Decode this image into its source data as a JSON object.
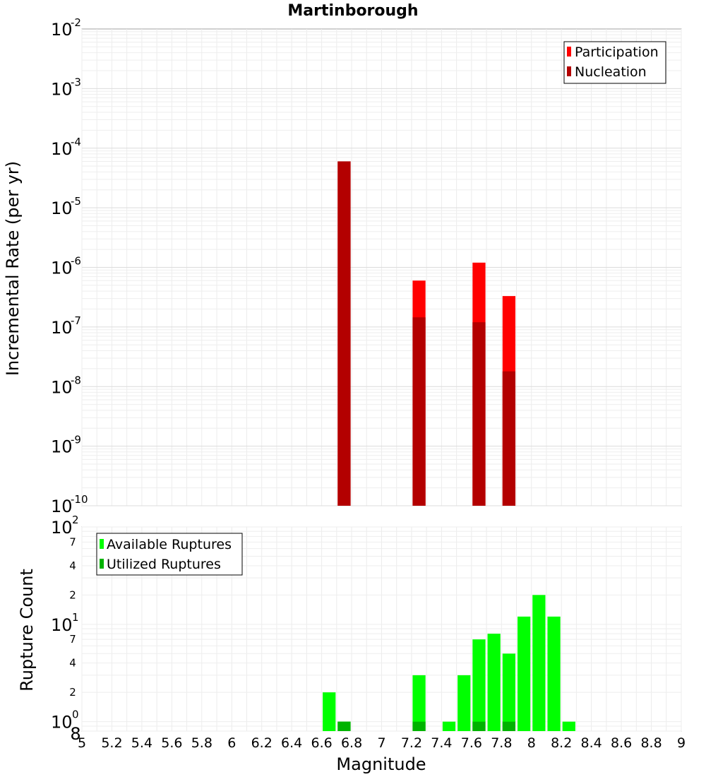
{
  "chart_data": [
    {
      "type": "bar",
      "title": "Martinborough",
      "xlabel": "",
      "ylabel": "Incremental Rate (per yr)",
      "yscale": "log",
      "xlim": [
        5,
        9
      ],
      "ylim": [
        1e-10,
        0.01
      ],
      "y_ticks": [
        {
          "base": "10",
          "exp": "-2"
        },
        {
          "base": "10",
          "exp": "-3"
        },
        {
          "base": "10",
          "exp": "-4"
        },
        {
          "base": "10",
          "exp": "-5"
        },
        {
          "base": "10",
          "exp": "-6"
        },
        {
          "base": "10",
          "exp": "-7"
        },
        {
          "base": "10",
          "exp": "-8"
        },
        {
          "base": "10",
          "exp": "-9"
        },
        {
          "base": "10",
          "exp": "-10"
        }
      ],
      "grid": true,
      "legend_position": "top-right",
      "series": [
        {
          "name": "Participation",
          "color": "#ff0000",
          "x": [
            6.75,
            7.25,
            7.65,
            7.85
          ],
          "values": [
            6e-05,
            6e-07,
            1.2e-06,
            3.3e-07
          ]
        },
        {
          "name": "Nucleation",
          "color": "#b30000",
          "x": [
            6.75,
            7.25,
            7.65,
            7.85
          ],
          "values": [
            6e-05,
            1.45e-07,
            1.2e-07,
            1.8e-08
          ]
        }
      ]
    },
    {
      "type": "bar",
      "title": "",
      "xlabel": "Magnitude",
      "ylabel": "Rupture Count",
      "yscale": "log",
      "xlim": [
        5,
        9
      ],
      "ylim": [
        0.8,
        100
      ],
      "x_ticks": [
        "5",
        "5.2",
        "5.4",
        "5.6",
        "5.8",
        "6",
        "6.2",
        "6.4",
        "6.6",
        "6.8",
        "7",
        "7.2",
        "7.4",
        "7.6",
        "7.8",
        "8",
        "8.2",
        "8.4",
        "8.6",
        "8.8",
        "9"
      ],
      "y_major_ticks": [
        {
          "base": "10",
          "exp": "2"
        },
        {
          "base": "10",
          "exp": "1"
        },
        {
          "base": "10",
          "exp": "0"
        }
      ],
      "y_minor_ticks": [
        "7",
        "4",
        "2",
        "7",
        "4",
        "2",
        "8"
      ],
      "grid": true,
      "legend_position": "top-left",
      "series": [
        {
          "name": "Available Ruptures",
          "color": "#00ff00",
          "x": [
            6.65,
            6.75,
            7.25,
            7.45,
            7.55,
            7.65,
            7.75,
            7.85,
            7.95,
            8.05,
            8.15,
            8.25
          ],
          "values": [
            2,
            1,
            3,
            1,
            3,
            7,
            8,
            5,
            12,
            20,
            12,
            1
          ]
        },
        {
          "name": "Utilized Ruptures",
          "color": "#00b300",
          "x": [
            6.75,
            7.25,
            7.65,
            7.85
          ],
          "values": [
            1,
            1,
            1,
            1
          ]
        }
      ]
    }
  ]
}
